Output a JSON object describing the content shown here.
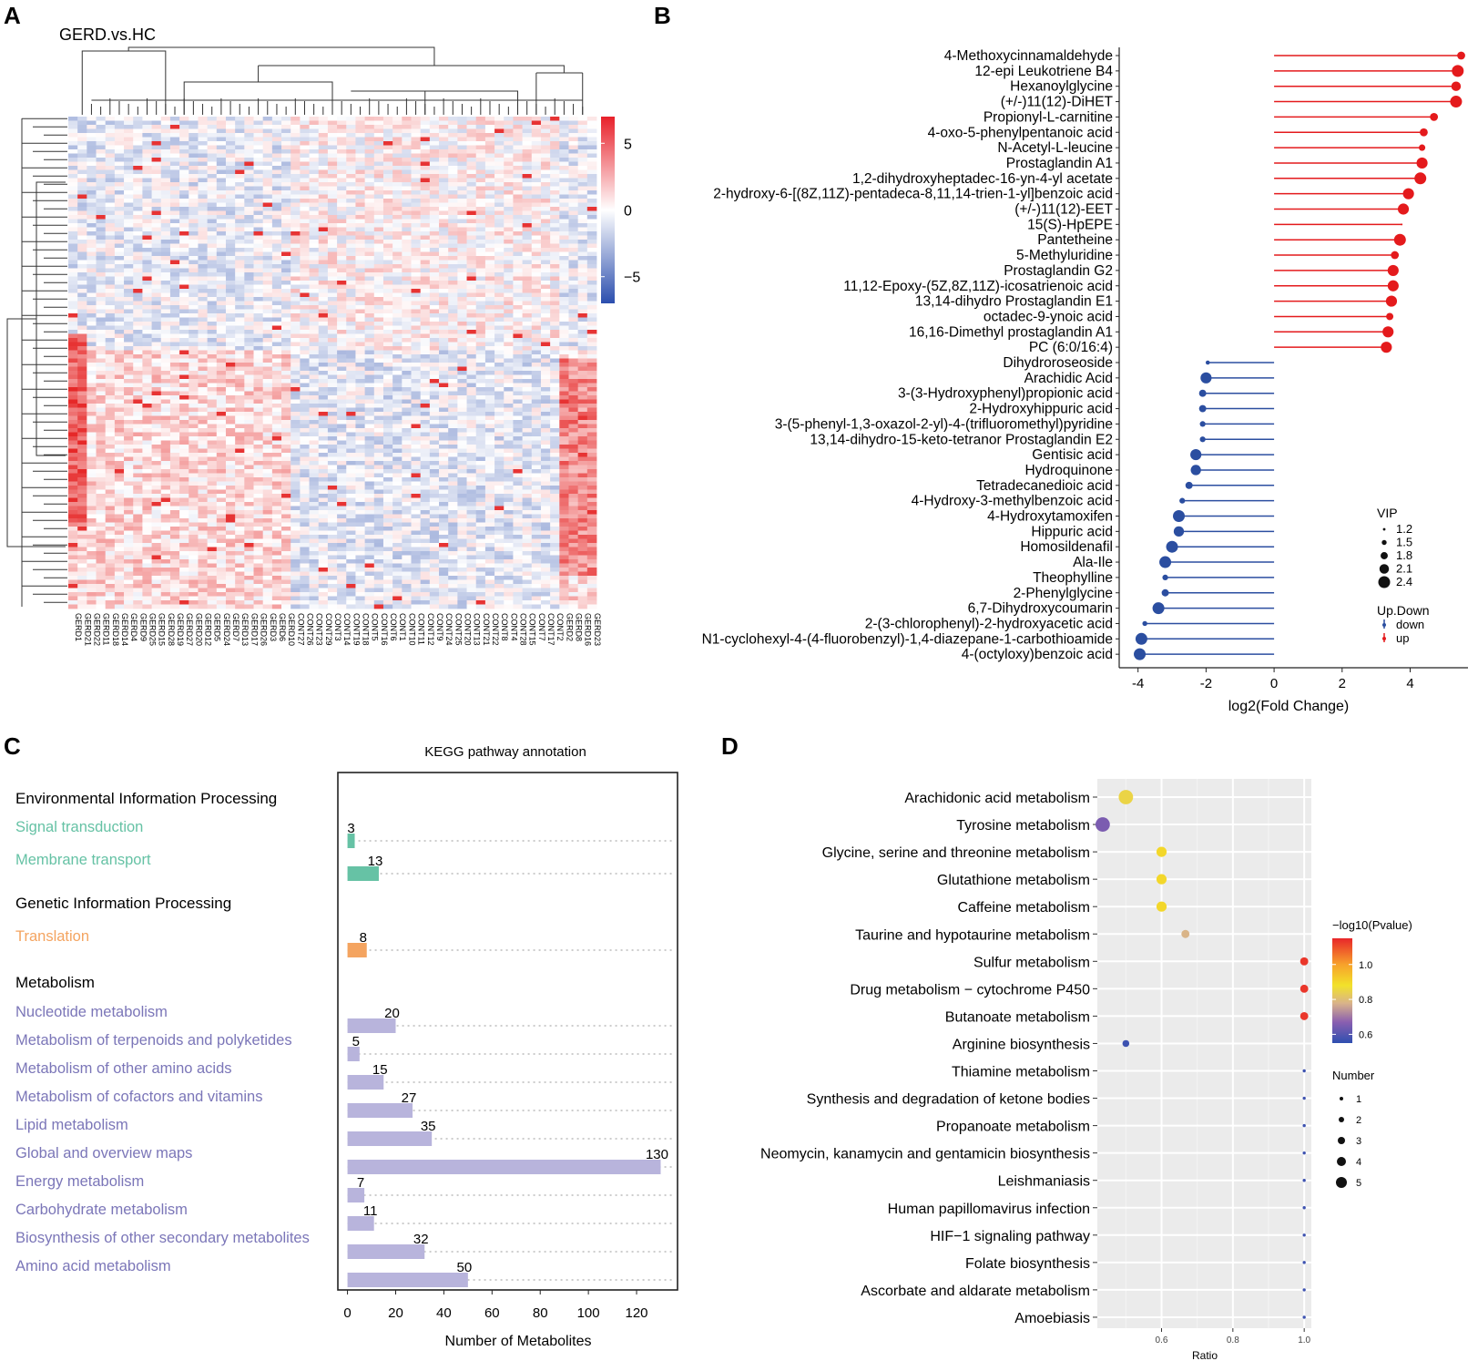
{
  "panels": {
    "a": "A",
    "b": "B",
    "c": "C",
    "d": "D"
  },
  "colors": {
    "up": "#e41a1c",
    "down": "#2b4ea0",
    "signal": "#66c2a5",
    "translation": "#f4a460",
    "metabolism": "#b8b4dc",
    "metabolism_text": "#7b76b8"
  },
  "chart_data": [
    {
      "type": "heatmap",
      "title": "GERD.vs.HC",
      "colorbar": {
        "ticks": [
          "5",
          "0",
          "−5"
        ],
        "range": [
          -7,
          7
        ]
      },
      "columns": [
        "GERD1",
        "GERD21",
        "GERD22",
        "GERD11",
        "GERD18",
        "GERD14",
        "GERD4",
        "GERD9",
        "GERD25",
        "GERD15",
        "GERD28",
        "GERD19",
        "GERD27",
        "GERD20",
        "GERD12",
        "GERD5",
        "GERD24",
        "GERD7",
        "GERD13",
        "GERD17",
        "GERD26",
        "GERD3",
        "GERD6",
        "GERD10",
        "CONT27",
        "CONT26",
        "CONT23",
        "CONT29",
        "CONT3",
        "CONT14",
        "CONT19",
        "CONT18",
        "CONT5",
        "CONT16",
        "CONT6",
        "CONT1",
        "CONT10",
        "CONT11",
        "CONT12",
        "CONT9",
        "CONT24",
        "CONT25",
        "CONT20",
        "CONT13",
        "CONT21",
        "CONT22",
        "CONT8",
        "CONT4",
        "CONT28",
        "CONT15",
        "CONT7",
        "CONT17",
        "CONT2",
        "GERD2",
        "GERD8",
        "GERD16",
        "GERD23"
      ]
    },
    {
      "type": "lollipop",
      "xlabel": "log2(Fold Change)",
      "xlim": [
        -4.5,
        5.7
      ],
      "xticks": [
        -4,
        -2,
        0,
        2,
        4
      ],
      "legend": {
        "vip_title": "VIP",
        "vip_values": [
          "1.2",
          "1.5",
          "1.8",
          "2.1",
          "2.4"
        ],
        "updown_title": "Up.Down",
        "down_label": "down",
        "up_label": "up"
      },
      "items": [
        {
          "name": "4-Methoxycinnamaldehyde",
          "fc": 5.5,
          "vip": 1.9
        },
        {
          "name": "12-epi Leukotriene B4",
          "fc": 5.4,
          "vip": 2.4
        },
        {
          "name": "Hexanoylglycine",
          "fc": 5.35,
          "vip": 2.1
        },
        {
          "name": "(+/-)11(12)-DiHET",
          "fc": 5.35,
          "vip": 2.4
        },
        {
          "name": "Propionyl-L-carnitine",
          "fc": 4.7,
          "vip": 1.9
        },
        {
          "name": "4-oxo-5-phenylpentanoic acid",
          "fc": 4.4,
          "vip": 1.9
        },
        {
          "name": "N-Acetyl-L-leucine",
          "fc": 4.35,
          "vip": 1.7
        },
        {
          "name": "Prostaglandin A1",
          "fc": 4.35,
          "vip": 2.3
        },
        {
          "name": "1,2-dihydroxyheptadec-16-yn-4-yl acetate",
          "fc": 4.3,
          "vip": 2.4
        },
        {
          "name": "2-hydroxy-6-[(8Z,11Z)-pentadeca-8,11,14-trien-1-yl]benzoic acid",
          "fc": 3.95,
          "vip": 2.3
        },
        {
          "name": "(+/-)11(12)-EET",
          "fc": 3.8,
          "vip": 2.3
        },
        {
          "name": "15(S)-HpEPE",
          "fc": 3.75,
          "vip": 1.1
        },
        {
          "name": "Pantetheine",
          "fc": 3.7,
          "vip": 2.4
        },
        {
          "name": "5-Methyluridine",
          "fc": 3.55,
          "vip": 1.9
        },
        {
          "name": "Prostaglandin G2",
          "fc": 3.5,
          "vip": 2.3
        },
        {
          "name": "11,12-Epoxy-(5Z,8Z,11Z)-icosatrienoic acid",
          "fc": 3.5,
          "vip": 2.3
        },
        {
          "name": "13,14-dihydro Prostaglandin E1",
          "fc": 3.45,
          "vip": 2.3
        },
        {
          "name": "octadec-9-ynoic acid",
          "fc": 3.4,
          "vip": 1.8
        },
        {
          "name": "16,16-Dimethyl prostaglandin A1",
          "fc": 3.35,
          "vip": 2.3
        },
        {
          "name": "PC (6:0/16:4)",
          "fc": 3.3,
          "vip": 2.3
        },
        {
          "name": "Dihydroroseoside",
          "fc": -1.95,
          "vip": 1.4
        },
        {
          "name": "Arachidic Acid",
          "fc": -2.0,
          "vip": 2.3
        },
        {
          "name": "3-(3-Hydroxyphenyl)propionic acid",
          "fc": -2.1,
          "vip": 1.8
        },
        {
          "name": "2-Hydroxyhippuric acid",
          "fc": -2.1,
          "vip": 1.8
        },
        {
          "name": "3-(5-phenyl-1,3-oxazol-2-yl)-4-(trifluoromethyl)pyridine",
          "fc": -2.1,
          "vip": 1.6
        },
        {
          "name": "13,14-dihydro-15-keto-tetranor Prostaglandin E2",
          "fc": -2.1,
          "vip": 1.6
        },
        {
          "name": "Gentisic acid",
          "fc": -2.3,
          "vip": 2.3
        },
        {
          "name": "Hydroquinone",
          "fc": -2.3,
          "vip": 2.2
        },
        {
          "name": "Tetradecanedioic acid",
          "fc": -2.5,
          "vip": 1.8
        },
        {
          "name": "4-Hydroxy-3-methylbenzoic acid",
          "fc": -2.7,
          "vip": 1.6
        },
        {
          "name": "4-Hydroxytamoxifen",
          "fc": -2.8,
          "vip": 2.4
        },
        {
          "name": "Hippuric acid",
          "fc": -2.8,
          "vip": 2.2
        },
        {
          "name": "Homosildenafil",
          "fc": -3.0,
          "vip": 2.4
        },
        {
          "name": "Ala-Ile",
          "fc": -3.2,
          "vip": 2.4
        },
        {
          "name": "Theophylline",
          "fc": -3.2,
          "vip": 1.6
        },
        {
          "name": "2-Phenylglycine",
          "fc": -3.2,
          "vip": 1.8
        },
        {
          "name": "6,7-Dihydroxycoumarin",
          "fc": -3.4,
          "vip": 2.4
        },
        {
          "name": "2-(3-chlorophenyl)-2-hydroxyacetic acid",
          "fc": -3.8,
          "vip": 1.5
        },
        {
          "name": "N1-cyclohexyl-4-(4-fluorobenzyl)-1,4-diazepane-1-carbothioamide",
          "fc": -3.9,
          "vip": 2.4
        },
        {
          "name": "4-(octyloxy)benzoic acid",
          "fc": -3.95,
          "vip": 2.4
        }
      ]
    },
    {
      "type": "bar",
      "title": "KEGG pathway annotation",
      "xlabel": "Number of Metabolites",
      "xlim": [
        -4,
        137
      ],
      "xticks": [
        0,
        20,
        40,
        60,
        80,
        100,
        120
      ],
      "groups": [
        {
          "name": "Environmental Information Processing",
          "items": [
            {
              "label": "Signal transduction",
              "value": 3,
              "color": "#66c2a5"
            },
            {
              "label": "Membrane transport",
              "value": 13,
              "color": "#66c2a5"
            }
          ]
        },
        {
          "name": "Genetic Information Processing",
          "items": [
            {
              "label": "Translation",
              "value": 8,
              "color": "#f4a460"
            }
          ]
        },
        {
          "name": "Metabolism",
          "items": [
            {
              "label": "Nucleotide metabolism",
              "value": 20,
              "color": "#b8b4dc"
            },
            {
              "label": "Metabolism of terpenoids and polyketides",
              "value": 5,
              "color": "#b8b4dc"
            },
            {
              "label": "Metabolism of other amino acids",
              "value": 15,
              "color": "#b8b4dc"
            },
            {
              "label": "Metabolism of cofactors and vitamins",
              "value": 27,
              "color": "#b8b4dc"
            },
            {
              "label": "Lipid metabolism",
              "value": 35,
              "color": "#b8b4dc"
            },
            {
              "label": "Global and overview maps",
              "value": 130,
              "color": "#b8b4dc"
            },
            {
              "label": "Energy metabolism",
              "value": 7,
              "color": "#b8b4dc"
            },
            {
              "label": "Carbohydrate metabolism",
              "value": 11,
              "color": "#b8b4dc"
            },
            {
              "label": "Biosynthesis of other secondary metabolites",
              "value": 32,
              "color": "#b8b4dc"
            },
            {
              "label": "Amino acid metabolism",
              "value": 50,
              "color": "#b8b4dc"
            }
          ]
        }
      ]
    },
    {
      "type": "scatter",
      "xlabel": "Ratio",
      "xlim": [
        0.42,
        1.02
      ],
      "xticks": [
        "0.6",
        "0.8",
        "1.0"
      ],
      "legend": {
        "color_title": "−log10(Pvalue)",
        "color_ticks": [
          "1.0",
          "0.8",
          "0.6"
        ],
        "color_range": [
          0.55,
          1.15
        ],
        "size_title": "Number",
        "size_values": [
          "1",
          "2",
          "3",
          "4",
          "5"
        ]
      },
      "items": [
        {
          "name": "Arachidonic acid metabolism",
          "ratio": 0.5,
          "p": 0.85,
          "n": 3
        },
        {
          "name": "Tyrosine metabolism",
          "ratio": 0.435,
          "p": 0.65,
          "n": 3
        },
        {
          "name": "Glycine, serine and threonine metabolism",
          "ratio": 0.6,
          "p": 0.9,
          "n": 2
        },
        {
          "name": "Glutathione metabolism",
          "ratio": 0.6,
          "p": 0.9,
          "n": 2
        },
        {
          "name": "Caffeine metabolism",
          "ratio": 0.6,
          "p": 0.9,
          "n": 2
        },
        {
          "name": "Taurine and hypotaurine metabolism",
          "ratio": 0.667,
          "p": 0.78,
          "n": 1.5
        },
        {
          "name": "Sulfur metabolism",
          "ratio": 1.0,
          "p": 1.13,
          "n": 1.5
        },
        {
          "name": "Drug metabolism − cytochrome P450",
          "ratio": 1.0,
          "p": 1.13,
          "n": 1.5
        },
        {
          "name": "Butanoate metabolism",
          "ratio": 1.0,
          "p": 1.13,
          "n": 1.5
        },
        {
          "name": "Arginine biosynthesis",
          "ratio": 0.5,
          "p": 0.57,
          "n": 1.2
        },
        {
          "name": "Thiamine metabolism",
          "ratio": 1.0,
          "p": 0.57,
          "n": 0.3
        },
        {
          "name": "Synthesis and degradation of ketone bodies",
          "ratio": 1.0,
          "p": 0.57,
          "n": 0.3
        },
        {
          "name": "Propanoate metabolism",
          "ratio": 1.0,
          "p": 0.57,
          "n": 0.3
        },
        {
          "name": "Neomycin, kanamycin and gentamicin biosynthesis",
          "ratio": 1.0,
          "p": 0.57,
          "n": 0.3
        },
        {
          "name": "Leishmaniasis",
          "ratio": 1.0,
          "p": 0.57,
          "n": 0.3
        },
        {
          "name": "Human papillomavirus infection",
          "ratio": 1.0,
          "p": 0.57,
          "n": 0.3
        },
        {
          "name": "HIF−1 signaling pathway",
          "ratio": 1.0,
          "p": 0.57,
          "n": 0.3
        },
        {
          "name": "Folate biosynthesis",
          "ratio": 1.0,
          "p": 0.57,
          "n": 0.3
        },
        {
          "name": "Ascorbate and aldarate metabolism",
          "ratio": 1.0,
          "p": 0.57,
          "n": 0.3
        },
        {
          "name": "Amoebiasis",
          "ratio": 1.0,
          "p": 0.57,
          "n": 0.3
        }
      ]
    }
  ]
}
